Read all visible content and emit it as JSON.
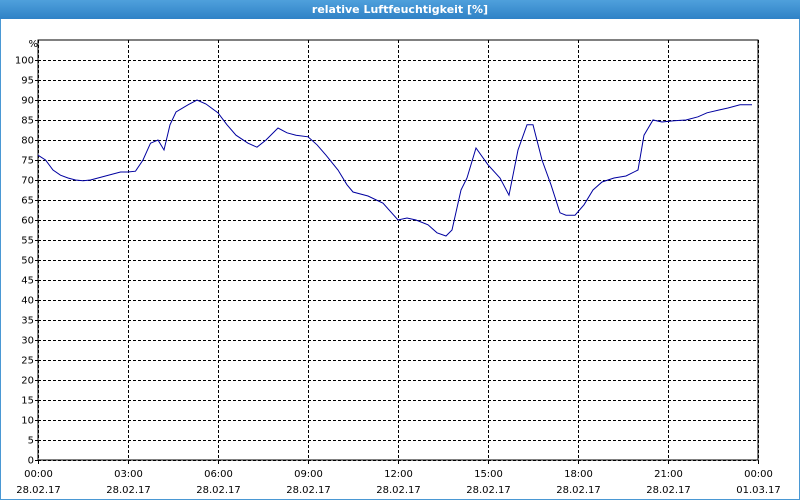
{
  "chart_data": {
    "type": "line",
    "title": "relative Luftfeuchtigkeit [%]",
    "y_unit": "%",
    "x": [
      0,
      0.25,
      0.5,
      0.75,
      1,
      1.25,
      1.5,
      1.75,
      2,
      2.25,
      2.5,
      2.75,
      3,
      3.25,
      3.5,
      3.75,
      4,
      4.2,
      4.4,
      4.6,
      5,
      5.3,
      5.6,
      6,
      6.3,
      6.6,
      7,
      7.3,
      7.6,
      8,
      8.3,
      8.6,
      9,
      9.3,
      9.6,
      10,
      10.3,
      10.5,
      11,
      11.5,
      12,
      12.3,
      12.6,
      13,
      13.3,
      13.6,
      13.8,
      14.1,
      14.3,
      14.6,
      15,
      15.4,
      15.7,
      16,
      16.3,
      16.5,
      16.8,
      17.1,
      17.4,
      17.6,
      17.9,
      18.2,
      18.5,
      18.8,
      19.2,
      19.6,
      20,
      20.2,
      20.5,
      20.8,
      21.2,
      21.6,
      22,
      22.3,
      22.7,
      23,
      23.4,
      23.8
    ],
    "series": [
      {
        "name": "relative Luftfeuchtigkeit",
        "color": "#0000a0",
        "values": [
          76.2,
          75,
          72.5,
          71.2,
          70.5,
          70,
          69.8,
          70,
          70.5,
          71,
          71.5,
          72,
          72,
          72.2,
          75,
          79.2,
          80,
          77.5,
          83.8,
          87,
          88.8,
          90,
          89,
          86.8,
          83.8,
          81.2,
          79.2,
          78.2,
          80,
          83,
          81.8,
          81.2,
          80.8,
          78.8,
          76.2,
          72.5,
          68.8,
          67,
          66,
          64.2,
          60,
          60.5,
          60,
          58.8,
          56.8,
          56,
          57.5,
          67.5,
          70.5,
          78,
          73.8,
          70.5,
          66.2,
          77.5,
          83.8,
          83.8,
          75,
          68.8,
          61.8,
          61.2,
          61.2,
          63.8,
          67.5,
          69.5,
          70.5,
          71,
          72.5,
          81.2,
          85,
          84.5,
          84.8,
          85,
          85.8,
          86.8,
          87.5,
          88,
          88.8,
          88.8
        ]
      }
    ],
    "xlim": [
      0,
      24
    ],
    "xticks": [
      {
        "value": 0,
        "label": "00:00",
        "date": "28.02.17"
      },
      {
        "value": 3,
        "label": "03:00",
        "date": "28.02.17"
      },
      {
        "value": 6,
        "label": "06:00",
        "date": "28.02.17"
      },
      {
        "value": 9,
        "label": "09:00",
        "date": "28.02.17"
      },
      {
        "value": 12,
        "label": "12:00",
        "date": "28.02.17"
      },
      {
        "value": 15,
        "label": "15:00",
        "date": "28.02.17"
      },
      {
        "value": 18,
        "label": "18:00",
        "date": "28.02.17"
      },
      {
        "value": 21,
        "label": "21:00",
        "date": "28.02.17"
      },
      {
        "value": 24,
        "label": "00:00",
        "date": "01.03.17"
      }
    ],
    "ylim": [
      0,
      105
    ],
    "yticks": [
      0,
      5,
      10,
      15,
      20,
      25,
      30,
      35,
      40,
      45,
      50,
      55,
      60,
      65,
      70,
      75,
      80,
      85,
      90,
      95,
      100
    ],
    "grid": true
  }
}
